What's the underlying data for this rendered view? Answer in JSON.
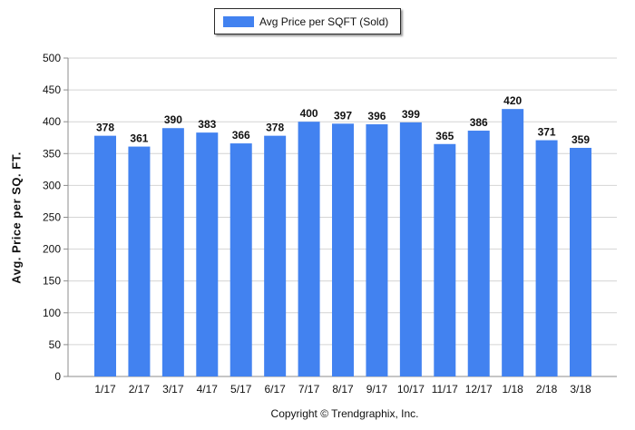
{
  "chart_data": {
    "type": "bar",
    "categories": [
      "1/17",
      "2/17",
      "3/17",
      "4/17",
      "5/17",
      "6/17",
      "7/17",
      "8/17",
      "9/17",
      "10/17",
      "11/17",
      "12/17",
      "1/18",
      "2/18",
      "3/18"
    ],
    "series": [
      {
        "name": "Avg Price per SQFT (Sold)",
        "values": [
          378,
          361,
          390,
          383,
          366,
          378,
          400,
          397,
          396,
          399,
          365,
          386,
          420,
          371,
          359
        ]
      }
    ],
    "xlabel": "",
    "ylabel": "Avg. Price per SQ. FT.",
    "ylim": [
      0,
      500
    ],
    "yticks": [
      0,
      50,
      100,
      150,
      200,
      250,
      300,
      350,
      400,
      450,
      500
    ],
    "grid": true,
    "legend": "top-center",
    "data_labels": true
  },
  "colors": {
    "bar": "#4282f0",
    "grid": "#d4d4d4",
    "axis": "#8c8c8c"
  },
  "copyright": "Copyright © Trendgraphix, Inc."
}
